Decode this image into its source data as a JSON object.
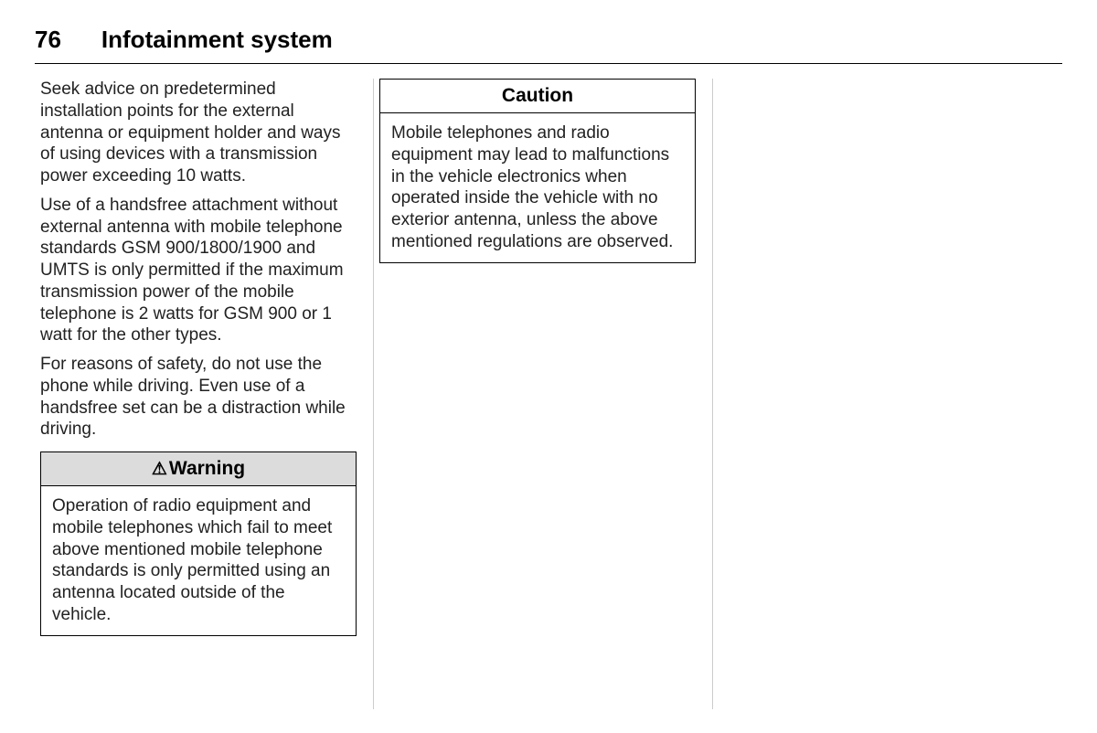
{
  "header": {
    "page_number": "76",
    "section_title": "Infotainment system"
  },
  "column1": {
    "para1": "Seek advice on predetermined installation points for the external antenna or equipment holder and ways of using devices with a transmission power exceeding 10 watts.",
    "para2": "Use of a handsfree attachment without external antenna with mobile telephone standards GSM 900/1800/1900 and UMTS is only permitted if the maximum transmission power of the mobile telephone is 2 watts for GSM 900 or 1 watt for the other types.",
    "para3": "For reasons of safety, do not use the phone while driving. Even use of a handsfree set can be a distraction while driving.",
    "warning": {
      "icon": "⚠",
      "title": "Warning",
      "body": "Operation of radio equipment and mobile telephones which fail to meet above mentioned mobile telephone standards is only permitted using an antenna located outside of the vehicle."
    }
  },
  "column2": {
    "caution": {
      "title": "Caution",
      "body": "Mobile telephones and radio equipment may lead to malfunctions in the vehicle electronics when operated inside the vehicle with no exterior antenna, unless the above mentioned regulations are observed."
    }
  }
}
